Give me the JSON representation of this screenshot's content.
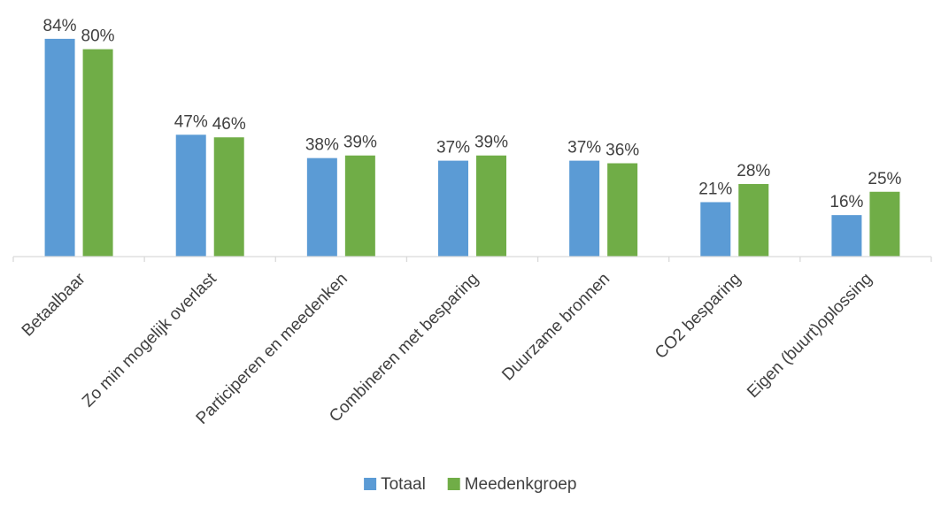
{
  "chart_data": {
    "type": "bar",
    "categories": [
      "Betaalbaar",
      "Zo min mogelijk overlast",
      "Participeren en meedenken",
      "Combineren met besparing",
      "Duurzame bronnen",
      "CO2 besparing",
      "Eigen (buurt)oplossing"
    ],
    "series": [
      {
        "name": "Totaal",
        "color": "#5B9BD5",
        "values": [
          84,
          47,
          38,
          37,
          37,
          21,
          16
        ],
        "labels": [
          "84%",
          "47%",
          "38%",
          "37%",
          "37%",
          "21%",
          "16%"
        ]
      },
      {
        "name": "Meedenkgroep",
        "color": "#70AD47",
        "values": [
          80,
          46,
          39,
          39,
          36,
          28,
          25
        ],
        "labels": [
          "80%",
          "46%",
          "39%",
          "39%",
          "36%",
          "28%",
          "25%"
        ]
      }
    ],
    "ylim": [
      0,
      88
    ],
    "y_unit": "%",
    "grid": false,
    "legend_position": "bottom"
  },
  "colors": {
    "axis": "#D9D9D9",
    "text": "#404040"
  }
}
